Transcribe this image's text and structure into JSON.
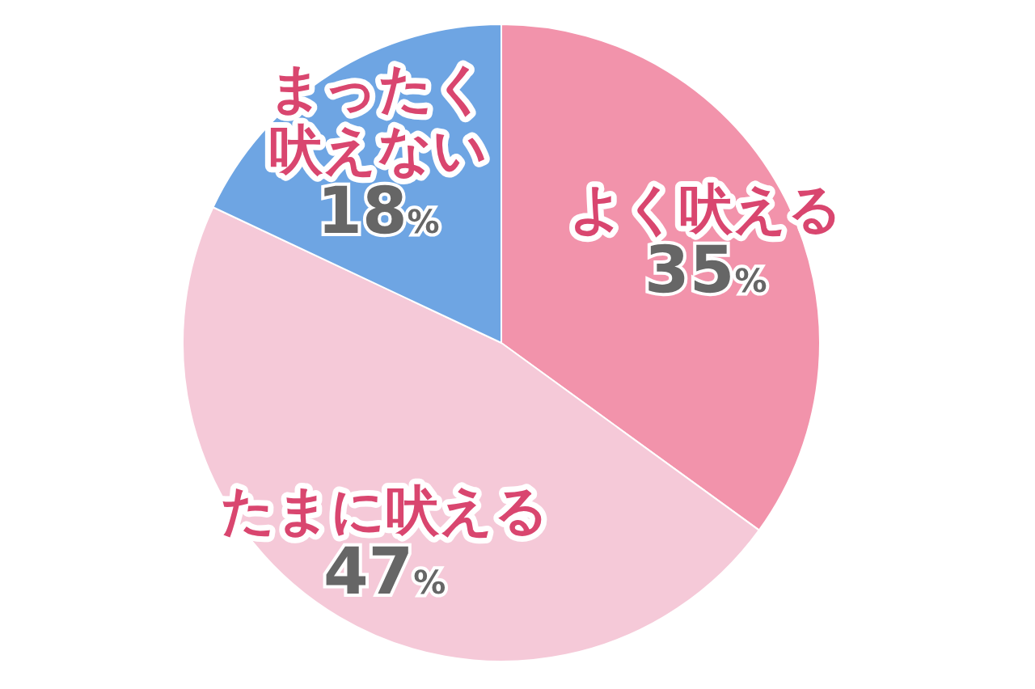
{
  "chart_data": {
    "type": "pie",
    "categories": [
      "よく吠える",
      "たまに吠える",
      "まったく吠えない"
    ],
    "values": [
      35,
      47,
      18
    ],
    "colors": [
      "#f293ab",
      "#f5c9d8",
      "#6ea5e3"
    ],
    "value_labels": [
      "35%",
      "47%",
      "18%"
    ]
  }
}
